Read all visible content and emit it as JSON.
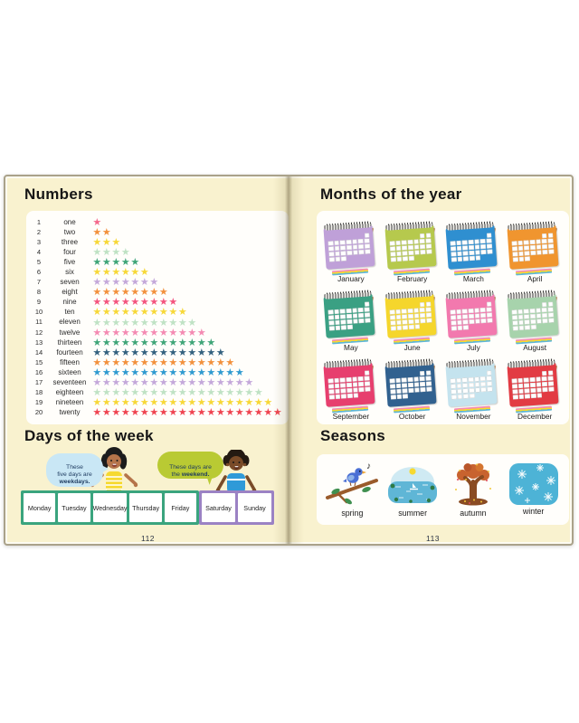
{
  "book_type": "children's picture book spread",
  "colors": {
    "page_cream": "#f9f2cf",
    "panel_white": "#fffefb",
    "weekday_green": "#3aa47e",
    "weekend_purple": "#9b82c4",
    "bubble_blue": "#c9e7f5",
    "bubble_green": "#b9ca33",
    "text_dark": "#1d3a5f"
  },
  "left_page": {
    "numbers_title": "Numbers",
    "numbers": [
      {
        "value": 1,
        "word": "one",
        "star_color": "#f4688c"
      },
      {
        "value": 2,
        "word": "two",
        "star_color": "#f2913d"
      },
      {
        "value": 3,
        "word": "three",
        "star_color": "#f7d838"
      },
      {
        "value": 4,
        "word": "four",
        "star_color": "#bfe2c4"
      },
      {
        "value": 5,
        "word": "five",
        "star_color": "#3fa578"
      },
      {
        "value": 6,
        "word": "six",
        "star_color": "#f7d838"
      },
      {
        "value": 7,
        "word": "seven",
        "star_color": "#c4a8da"
      },
      {
        "value": 8,
        "word": "eight",
        "star_color": "#f2913d"
      },
      {
        "value": 9,
        "word": "nine",
        "star_color": "#f4547e"
      },
      {
        "value": 10,
        "word": "ten",
        "star_color": "#f7d838"
      },
      {
        "value": 11,
        "word": "eleven",
        "star_color": "#bfe2c4"
      },
      {
        "value": 12,
        "word": "twelve",
        "star_color": "#f48ab2"
      },
      {
        "value": 13,
        "word": "thirteen",
        "star_color": "#3fa578"
      },
      {
        "value": 14,
        "word": "fourteen",
        "star_color": "#33617f"
      },
      {
        "value": 15,
        "word": "fifteen",
        "star_color": "#f2913d"
      },
      {
        "value": 16,
        "word": "sixteen",
        "star_color": "#2f9ad0"
      },
      {
        "value": 17,
        "word": "seventeen",
        "star_color": "#c4a8da"
      },
      {
        "value": 18,
        "word": "eighteen",
        "star_color": "#bfe2c4"
      },
      {
        "value": 19,
        "word": "nineteen",
        "star_color": "#f7d838"
      },
      {
        "value": 20,
        "word": "twenty",
        "star_color": "#ef4451"
      }
    ],
    "days_title": "Days of the week",
    "weekdays_bubble": {
      "text": "These\nfive days are\n",
      "bold": "weekdays."
    },
    "weekend_bubble": {
      "text": "These days are\nthe ",
      "bold": "weekend."
    },
    "weekdays": [
      "Monday",
      "Tuesday",
      "Wednesday",
      "Thursday",
      "Friday"
    ],
    "weekend_days": [
      "Saturday",
      "Sunday"
    ],
    "page_number": "112"
  },
  "right_page": {
    "months_title": "Months of the year",
    "months": [
      {
        "name": "January",
        "color": "#bfa0d8"
      },
      {
        "name": "February",
        "color": "#b6c94d"
      },
      {
        "name": "March",
        "color": "#2f8fd0"
      },
      {
        "name": "April",
        "color": "#f0952f"
      },
      {
        "name": "May",
        "color": "#3aa083"
      },
      {
        "name": "June",
        "color": "#f5d62c"
      },
      {
        "name": "July",
        "color": "#f279ae"
      },
      {
        "name": "August",
        "color": "#a7d3ac"
      },
      {
        "name": "September",
        "color": "#e73f6e"
      },
      {
        "name": "October",
        "color": "#31618f"
      },
      {
        "name": "November",
        "color": "#c4e3ee"
      },
      {
        "name": "December",
        "color": "#e23b43"
      }
    ],
    "seasons_title": "Seasons",
    "seasons": [
      {
        "name": "spring"
      },
      {
        "name": "summer"
      },
      {
        "name": "autumn"
      },
      {
        "name": "winter"
      }
    ],
    "page_number": "113"
  }
}
